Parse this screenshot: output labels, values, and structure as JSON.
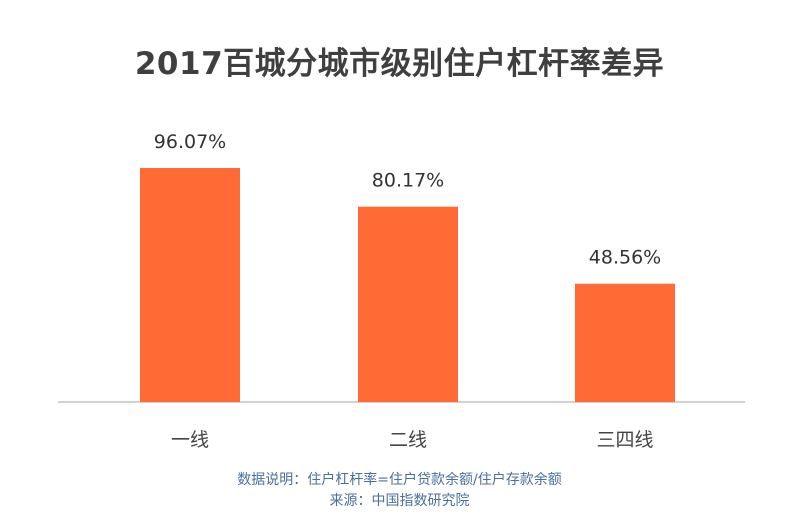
{
  "chart_data": {
    "type": "bar",
    "title": "2017百城分城市级别住户杠杆率差异",
    "categories": [
      "一线",
      "二线",
      "三四线"
    ],
    "values": [
      96.07,
      80.17,
      48.56
    ],
    "value_labels": [
      "96.07%",
      "80.17%",
      "48.56%"
    ],
    "unit": "%",
    "ylim": [
      0,
      100
    ],
    "grid": false,
    "legend": "none",
    "bar_color": "#ff6a35"
  },
  "notes": {
    "definition": "数据说明：住户杠杆率=住户贷款余额/住户存款余额",
    "source": "来源：中国指数研究院"
  }
}
